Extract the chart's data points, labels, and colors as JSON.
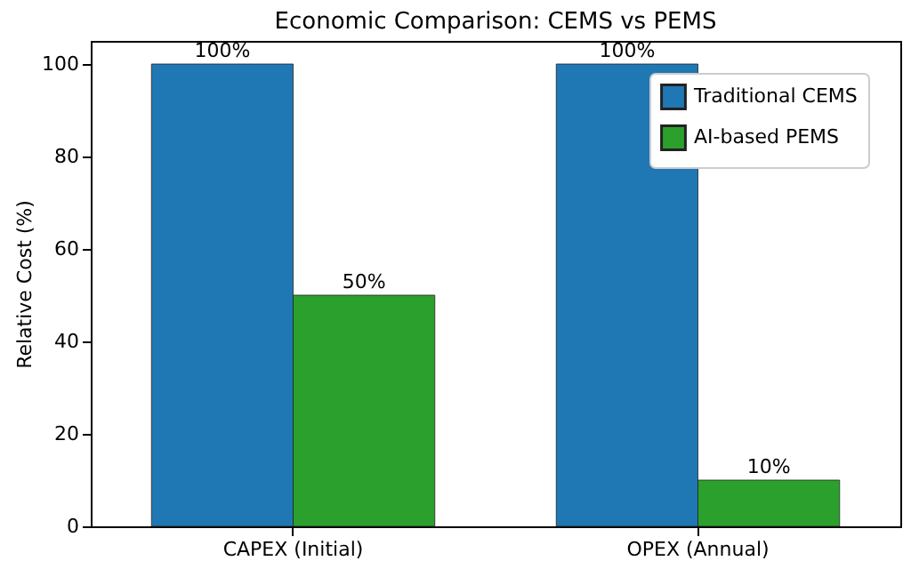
{
  "chart_data": {
    "type": "bar",
    "title": "Economic Comparison: CEMS vs PEMS",
    "ylabel": "Relative Cost (%)",
    "categories": [
      "CAPEX (Initial)",
      "OPEX (Annual)"
    ],
    "series": [
      {
        "name": "Traditional CEMS",
        "color": "#1f77b4",
        "values": [
          100,
          100
        ],
        "value_labels": [
          "100%",
          "100%"
        ]
      },
      {
        "name": "AI-based PEMS",
        "color": "#2ca02c",
        "values": [
          50,
          10
        ],
        "value_labels": [
          "50%",
          "10%"
        ]
      }
    ],
    "ylim": [
      0,
      105
    ],
    "yticks": [
      0,
      20,
      40,
      60,
      80,
      100
    ],
    "legend": "top right",
    "grid": false
  }
}
